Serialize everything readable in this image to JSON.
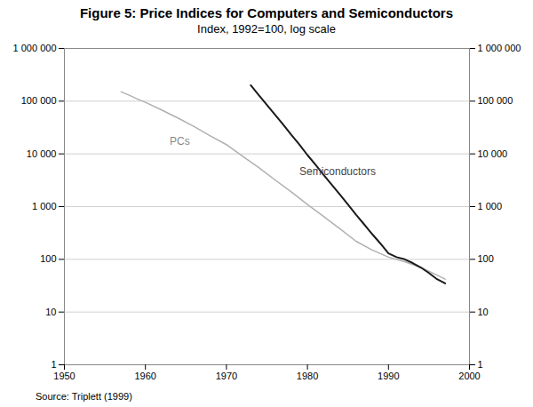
{
  "chart_data": {
    "type": "line",
    "title": "Figure 5: Price Indices for Computers and Semiconductors",
    "subtitle": "Index, 1992=100, log scale",
    "source": "Source: Triplett (1999)",
    "log": "y",
    "grid": true,
    "xlim": [
      1950,
      2000
    ],
    "xticks": [
      1950,
      1960,
      1970,
      1980,
      1990,
      2000
    ],
    "ylim": [
      1,
      1000000
    ],
    "yticks": [
      1,
      10,
      100,
      {
        "value": 1000,
        "label": "1 000"
      },
      {
        "value": 10000,
        "label": "10 000"
      },
      {
        "value": 100000,
        "label": "100 000"
      },
      {
        "value": 1000000,
        "label": "1 000 000"
      }
    ],
    "series": [
      {
        "name": "PCs",
        "color": "#b0b0b0",
        "x": [
          1957,
          1958,
          1959,
          1960,
          1962,
          1964,
          1966,
          1968,
          1970,
          1972,
          1974,
          1976,
          1978,
          1980,
          1982,
          1984,
          1986,
          1988,
          1990,
          1992,
          1994,
          1996,
          1997
        ],
        "values": [
          150000,
          130000,
          110000,
          95000,
          68000,
          48000,
          33000,
          22000,
          15000,
          9000,
          5500,
          3200,
          1900,
          1100,
          650,
          380,
          220,
          150,
          110,
          90,
          70,
          50,
          42
        ]
      },
      {
        "name": "Semiconductors",
        "color": "#1a1a1a",
        "x": [
          1973,
          1974,
          1975,
          1976,
          1977,
          1978,
          1979,
          1980,
          1981,
          1982,
          1983,
          1984,
          1985,
          1986,
          1987,
          1988,
          1989,
          1990,
          1991,
          1992,
          1993,
          1994,
          1995,
          1996,
          1997
        ],
        "values": [
          200000,
          130000,
          85000,
          55000,
          36000,
          23000,
          15000,
          9500,
          6200,
          4000,
          2600,
          1700,
          1100,
          700,
          460,
          300,
          200,
          130,
          110,
          100,
          85,
          70,
          55,
          42,
          35
        ]
      }
    ],
    "annotations": [
      {
        "text": "PCs",
        "x": 1963,
        "y": 15000,
        "color": "#888888"
      },
      {
        "text": "Semiconductors",
        "x": 1979,
        "y": 4000,
        "color": "#444444"
      }
    ]
  }
}
